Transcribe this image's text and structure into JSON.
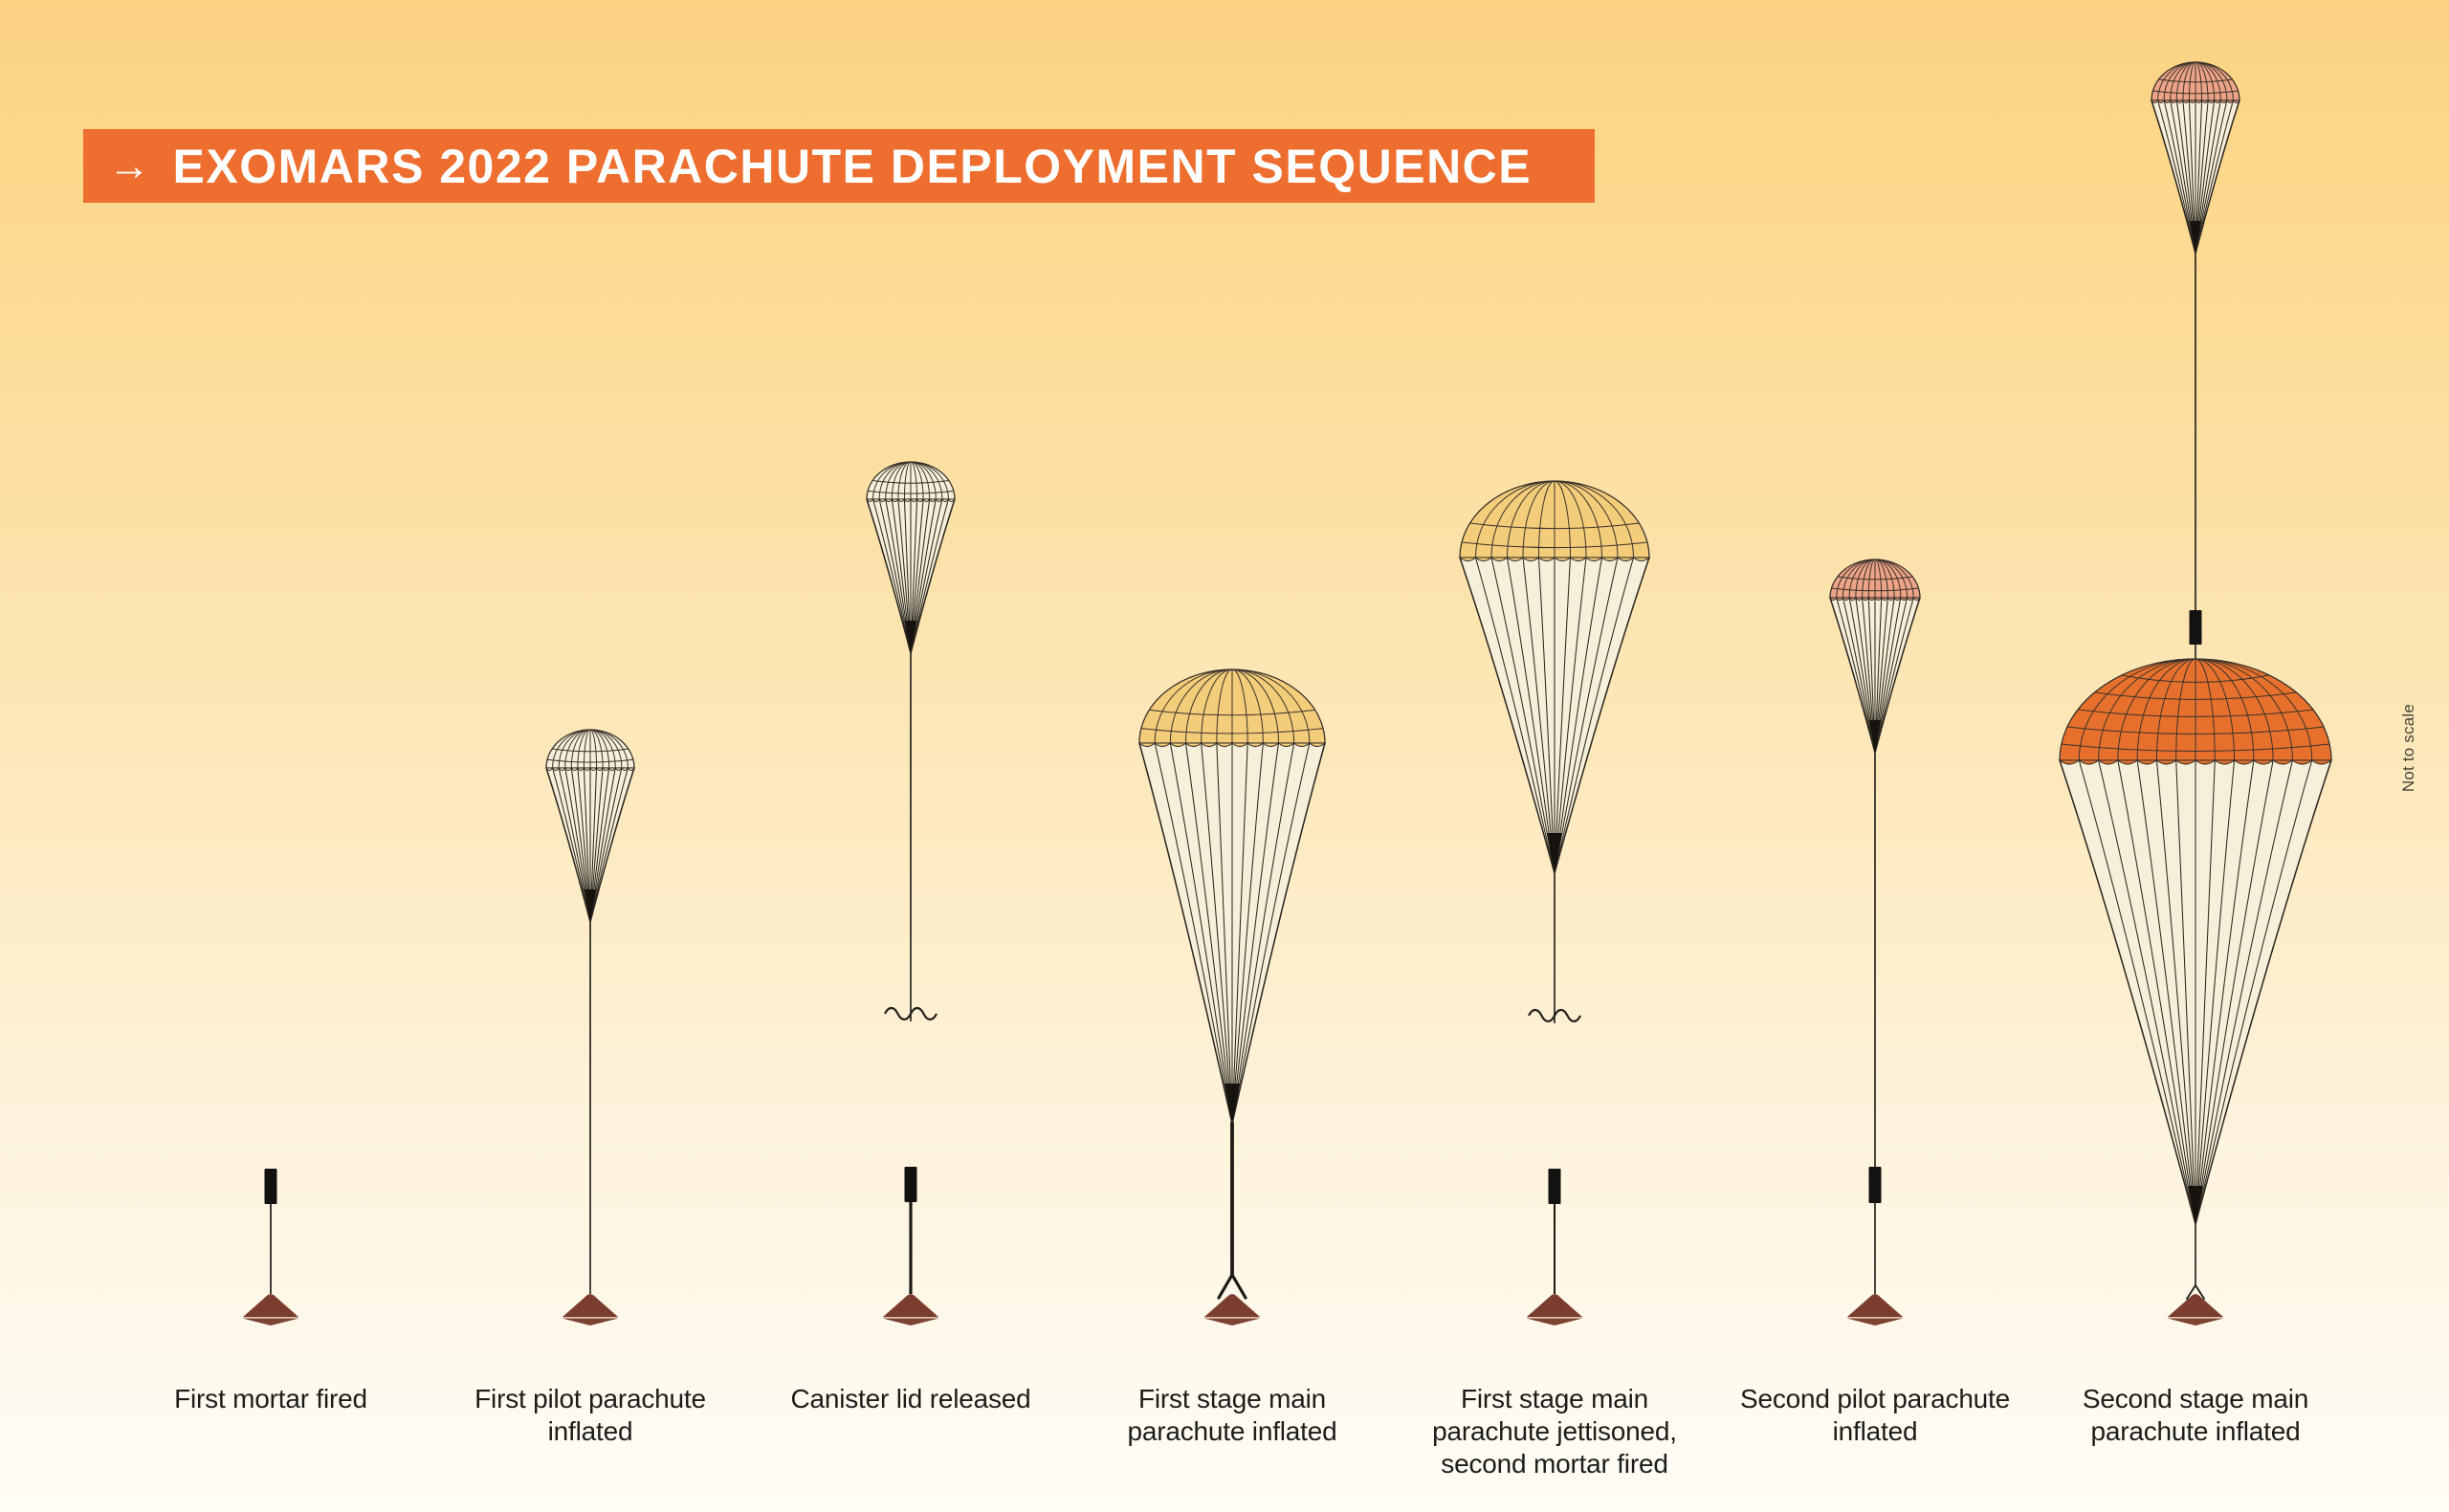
{
  "header": {
    "arrow_icon": "→",
    "title": "EXOMARS 2022 PARACHUTE DEPLOYMENT SEQUENCE"
  },
  "note": {
    "text": "Not to scale"
  },
  "palette": {
    "banner_orange": "#ed6e2e",
    "background_top": "#fbd182",
    "background_bottom": "#fffdf6",
    "canopy_cream": "#f6f0da",
    "crown_yellow": "#f3cd7a",
    "crown_salmon": "#eda387",
    "crown_orange": "#e7712c",
    "capsule_maroon": "#7b3d2d",
    "capsule_maroon_lower": "#7e4232",
    "line_dark": "#1c1a16",
    "caption_text": "#1d1c1a"
  },
  "stages": [
    {
      "label": "First mortar fired"
    },
    {
      "label": "First pilot parachute\ninflated"
    },
    {
      "label": "Canister lid released"
    },
    {
      "label": "First stage main\nparachute inflated"
    },
    {
      "label": "First stage main\nparachute jettisoned,\nsecond mortar fired"
    },
    {
      "label": "Second pilot parachute\ninflated"
    },
    {
      "label": "Second stage main\nparachute inflated"
    }
  ]
}
